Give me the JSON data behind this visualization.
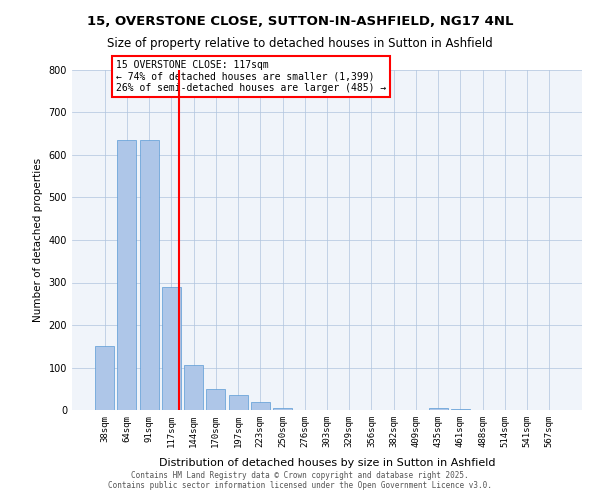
{
  "title1": "15, OVERSTONE CLOSE, SUTTON-IN-ASHFIELD, NG17 4NL",
  "title2": "Size of property relative to detached houses in Sutton in Ashfield",
  "xlabel": "Distribution of detached houses by size in Sutton in Ashfield",
  "ylabel": "Number of detached properties",
  "categories": [
    "38sqm",
    "64sqm",
    "91sqm",
    "117sqm",
    "144sqm",
    "170sqm",
    "197sqm",
    "223sqm",
    "250sqm",
    "276sqm",
    "303sqm",
    "329sqm",
    "356sqm",
    "382sqm",
    "409sqm",
    "435sqm",
    "461sqm",
    "488sqm",
    "514sqm",
    "541sqm",
    "567sqm"
  ],
  "values": [
    150,
    635,
    635,
    290,
    105,
    50,
    35,
    18,
    5,
    1,
    0,
    0,
    0,
    0,
    0,
    5,
    2,
    1,
    0,
    0,
    0
  ],
  "bar_color": "#aec6e8",
  "bar_edge_color": "#5b9bd5",
  "highlight_index": 3,
  "red_line_x": 3,
  "annotation_title": "15 OVERSTONE CLOSE: 117sqm",
  "annotation_line1": "← 74% of detached houses are smaller (1,399)",
  "annotation_line2": "26% of semi-detached houses are larger (485) →",
  "ylim": [
    0,
    800
  ],
  "yticks": [
    0,
    100,
    200,
    300,
    400,
    500,
    600,
    700,
    800
  ],
  "bg_color": "#f0f4fa",
  "footer1": "Contains HM Land Registry data © Crown copyright and database right 2025.",
  "footer2": "Contains public sector information licensed under the Open Government Licence v3.0."
}
